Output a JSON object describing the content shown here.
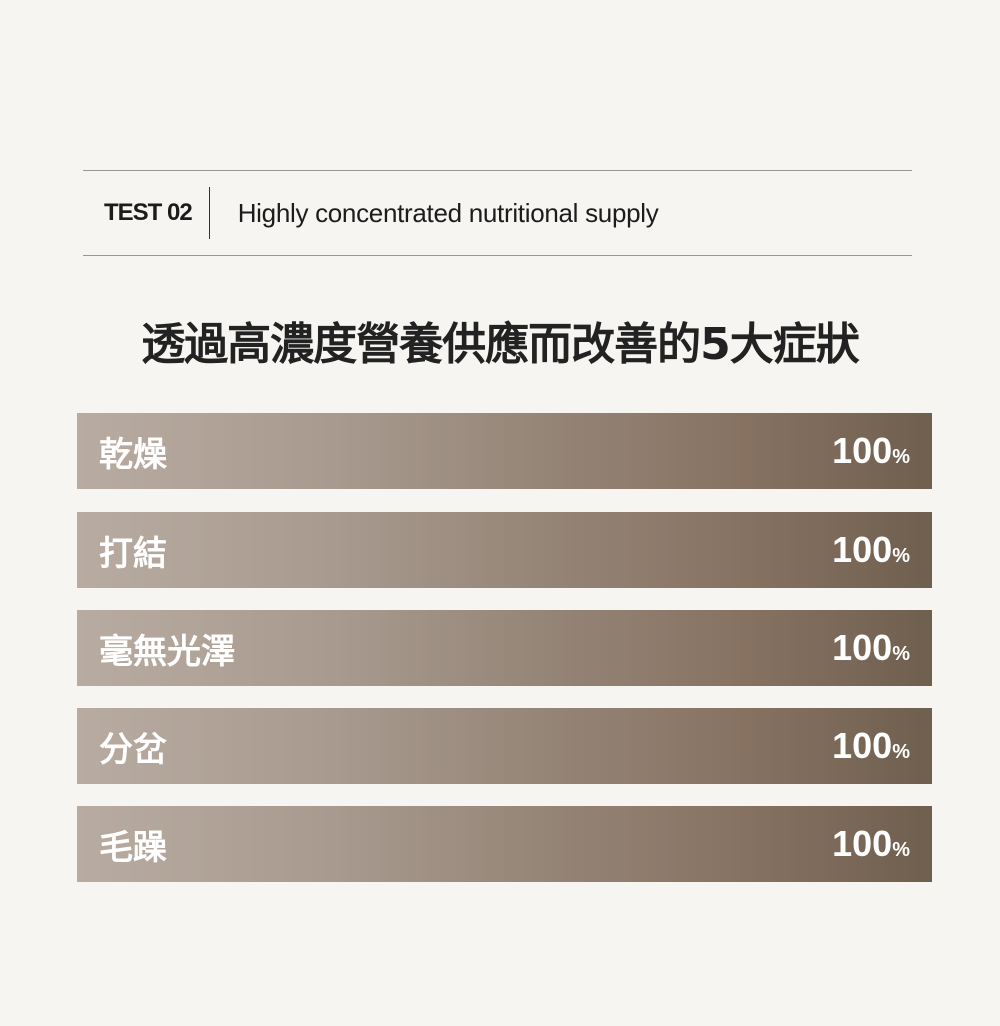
{
  "header": {
    "test_label": "TEST 02",
    "subtitle": "Highly concentrated nutritional supply"
  },
  "title": "透過高濃度營養供應而改善的5大症狀",
  "colors": {
    "bar_start": "#b8aba1",
    "bar_end": "#6f5f4f",
    "background": "#f6f5f2"
  },
  "items": [
    {
      "label": "乾燥",
      "value": "100",
      "unit": "%"
    },
    {
      "label": "打結",
      "value": "100",
      "unit": "%"
    },
    {
      "label": "毫無光澤",
      "value": "100",
      "unit": "%"
    },
    {
      "label": "分岔",
      "value": "100",
      "unit": "%"
    },
    {
      "label": "毛躁",
      "value": "100",
      "unit": "%"
    }
  ]
}
